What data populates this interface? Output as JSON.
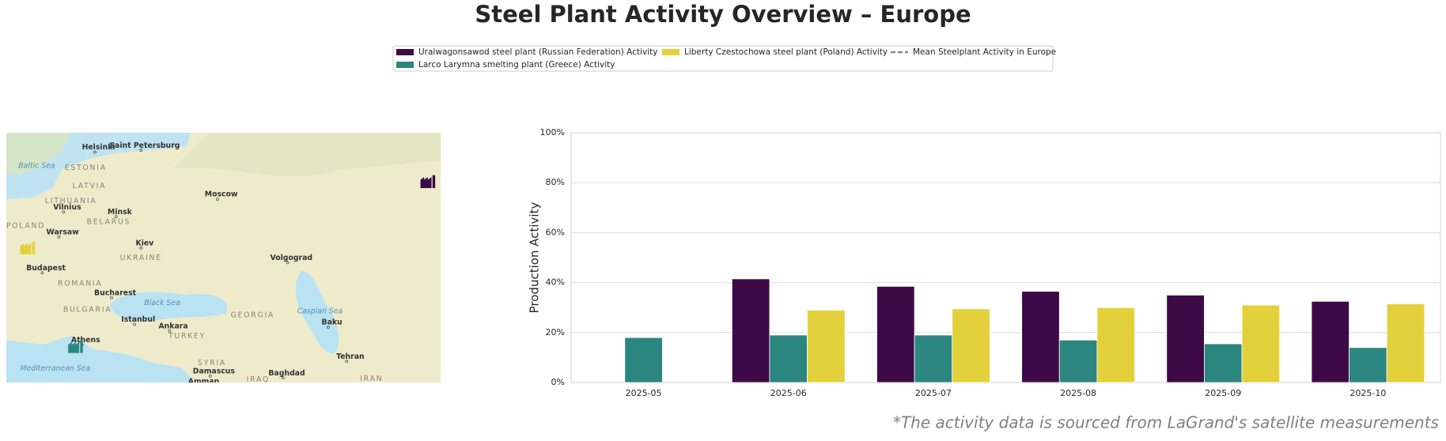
{
  "chart_data": {
    "type": "bar",
    "title": "Steel Plant Activity Overview – Europe",
    "ylabel": "Production Activity",
    "categories": [
      "2025-05",
      "2025-06",
      "2025-07",
      "2025-08",
      "2025-09",
      "2025-10"
    ],
    "series": [
      {
        "name": "Uralwagonsawod steel plant (Russian Federation) Activity",
        "color": "#3d0a47",
        "values": [
          null,
          41.5,
          38.5,
          36.5,
          35,
          32.5
        ]
      },
      {
        "name": "Larco Larymna smelting plant (Greece) Activity",
        "color": "#2c8680",
        "values": [
          18,
          19,
          19,
          17,
          15.5,
          14
        ]
      },
      {
        "name": "Liberty Czestochowa steel plant (Poland) Activity",
        "color": "#e3d13c",
        "values": [
          null,
          29,
          29.5,
          30,
          31,
          31.5
        ]
      },
      {
        "name": "Mean Steelplant Activity in Europe",
        "color": "#888888",
        "dash": true,
        "values": [
          null,
          null,
          null,
          null,
          null,
          null
        ]
      }
    ],
    "ylim": [
      0,
      100
    ],
    "yticks": [
      {
        "value": 0,
        "label": "0%"
      },
      {
        "value": 20,
        "label": "20%"
      },
      {
        "value": 40,
        "label": "40%"
      },
      {
        "value": 60,
        "label": "60%"
      },
      {
        "value": 80,
        "label": "80%"
      },
      {
        "value": 100,
        "label": "100%"
      }
    ],
    "grid": true,
    "footnote": "*The activity data is sourced from LaGrand's satellite measurements"
  },
  "map": {
    "labels": [
      "Helsinki",
      "Saint Petersburg",
      "Moscow",
      "Minsk",
      "Vilnius",
      "Warsaw",
      "Kiev",
      "Volgograd",
      "Budapest",
      "Bucharest",
      "Istanbul",
      "Ankara",
      "Athens",
      "Baku",
      "Tehran",
      "Damascus",
      "Baghdad",
      "Amman",
      "ESTONIA",
      "LATVIA",
      "LITHUANIA",
      "BELARUS",
      "POLAND",
      "UKRAINE",
      "ROMANIA",
      "BULGARIA",
      "GEORGIA",
      "TURKEY",
      "SYRIA",
      "IRAQ",
      "IRAN",
      "Baltic Sea",
      "Black Sea",
      "Caspian Sea",
      "Mediterranean Sea"
    ]
  }
}
